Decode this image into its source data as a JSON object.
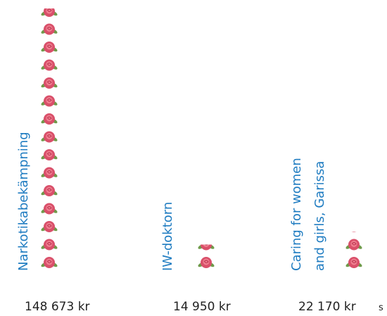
{
  "chart_data": {
    "type": "pictogram",
    "categories": [
      "Narkotikabekämpning",
      "IW-doktorn",
      "Caring for women\nand girls, Garissa"
    ],
    "values": [
      148673,
      14950,
      22170
    ],
    "value_labels": [
      "148 673 kr",
      "14 950 kr",
      "22 170 kr"
    ],
    "annotation": "s",
    "color": "#1f7cc1"
  }
}
